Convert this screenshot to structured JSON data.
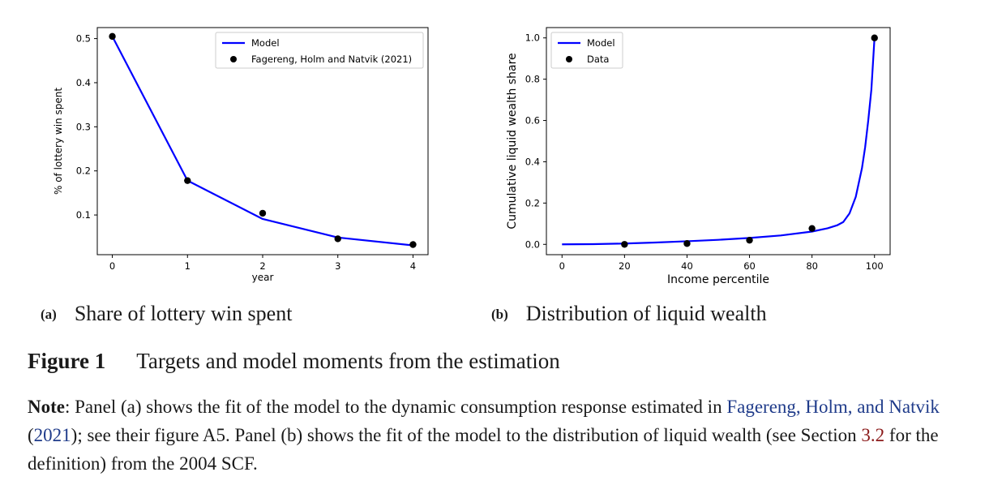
{
  "chart_data": [
    {
      "type": "line",
      "panel": "a",
      "xlabel": "year",
      "ylabel": "% of lottery win spent",
      "xlim": [
        -0.2,
        4.2
      ],
      "ylim": [
        0.01,
        0.525
      ],
      "xticks": [
        0,
        1,
        2,
        3,
        4
      ],
      "yticks": [
        0.1,
        0.2,
        0.3,
        0.4,
        0.5
      ],
      "legend_position": "top-right",
      "series": [
        {
          "name": "Model",
          "kind": "line",
          "color": "#0000ff",
          "x": [
            0,
            1,
            2,
            3,
            4
          ],
          "y": [
            0.505,
            0.178,
            0.091,
            0.049,
            0.031
          ]
        },
        {
          "name": "Fagereng, Holm and Natvik (2021)",
          "kind": "scatter",
          "color": "#000000",
          "x": [
            0,
            1,
            2,
            3,
            4
          ],
          "y": [
            0.505,
            0.178,
            0.104,
            0.046,
            0.033
          ]
        }
      ]
    },
    {
      "type": "line",
      "panel": "b",
      "xlabel": "Income percentile",
      "ylabel": "Cumulative liquid wealth share",
      "xlim": [
        -5,
        105
      ],
      "ylim": [
        -0.05,
        1.05
      ],
      "xticks": [
        0,
        20,
        40,
        60,
        80,
        100
      ],
      "yticks": [
        0.0,
        0.2,
        0.4,
        0.6,
        0.8,
        1.0
      ],
      "legend_position": "top-left",
      "series": [
        {
          "name": "Model",
          "kind": "line",
          "color": "#0000ff",
          "x": [
            0,
            10,
            20,
            30,
            40,
            50,
            60,
            70,
            80,
            85,
            88,
            90,
            92,
            94,
            96,
            97,
            98,
            99,
            100
          ],
          "y": [
            0,
            0.001,
            0.004,
            0.009,
            0.015,
            0.022,
            0.031,
            0.043,
            0.062,
            0.078,
            0.092,
            0.108,
            0.15,
            0.23,
            0.37,
            0.47,
            0.6,
            0.75,
            1.0
          ]
        },
        {
          "name": "Data",
          "kind": "scatter",
          "color": "#000000",
          "x": [
            20,
            40,
            60,
            80,
            100
          ],
          "y": [
            0.0,
            0.004,
            0.02,
            0.077,
            1.0
          ]
        }
      ]
    }
  ],
  "captions": {
    "a_tag": "(a)",
    "a_text": "Share of lottery win spent",
    "b_tag": "(b)",
    "b_text": "Distribution of liquid wealth"
  },
  "figure": {
    "label": "Figure 1",
    "title": "Targets and model moments from the estimation"
  },
  "note": {
    "label": "Note",
    "text1": ": Panel (a) shows the fit of the model to the dynamic consumption response estimated in ",
    "cite": "Fagereng, Holm, and Natvik",
    "year_open": " (",
    "year": "2021",
    "text2": "); see their figure A5. Panel (b) shows the fit of the model to the distribution of liquid wealth (see Section ",
    "section": "3.2",
    "text3": " for the definition) from the 2004 SCF."
  }
}
